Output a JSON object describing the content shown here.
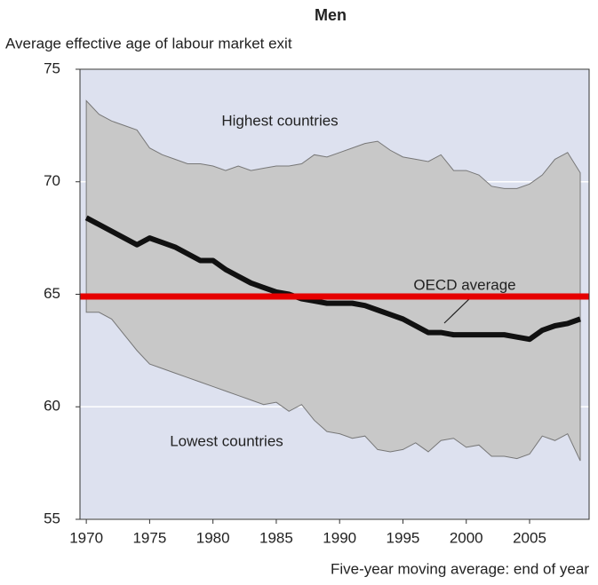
{
  "chart_data": {
    "type": "band",
    "title": "Men",
    "y_label": "Average effective age of labour market exit",
    "x_label": "Five-year moving average: end of year",
    "x": [
      1970,
      1971,
      1972,
      1973,
      1974,
      1975,
      1976,
      1977,
      1978,
      1979,
      1980,
      1981,
      1982,
      1983,
      1984,
      1985,
      1986,
      1987,
      1988,
      1989,
      1990,
      1991,
      1992,
      1993,
      1994,
      1995,
      1996,
      1997,
      1998,
      1999,
      2000,
      2001,
      2002,
      2003,
      2004,
      2005,
      2006,
      2007,
      2008,
      2009
    ],
    "series": [
      {
        "name": "Highest countries",
        "role": "upper",
        "color": "#c8c8c8",
        "values": [
          73.6,
          73.0,
          72.7,
          72.5,
          72.3,
          71.5,
          71.2,
          71.0,
          70.8,
          70.8,
          70.7,
          70.5,
          70.7,
          70.5,
          70.6,
          70.7,
          70.7,
          70.8,
          71.2,
          71.1,
          71.3,
          71.5,
          71.7,
          71.8,
          71.4,
          71.1,
          71.0,
          70.9,
          71.2,
          70.5,
          70.5,
          70.3,
          69.8,
          69.7,
          69.7,
          69.9,
          70.3,
          71.0,
          71.3,
          70.4
        ]
      },
      {
        "name": "Lowest countries",
        "role": "lower",
        "color": "#c8c8c8",
        "values": [
          64.2,
          64.2,
          63.9,
          63.2,
          62.5,
          61.9,
          61.7,
          61.5,
          61.3,
          61.1,
          60.9,
          60.7,
          60.5,
          60.3,
          60.1,
          60.2,
          59.8,
          60.1,
          59.4,
          58.9,
          58.8,
          58.6,
          58.7,
          58.1,
          58.0,
          58.1,
          58.4,
          58.0,
          58.5,
          58.6,
          58.2,
          58.3,
          57.8,
          57.8,
          57.7,
          57.9,
          58.7,
          58.5,
          58.8,
          57.6
        ]
      },
      {
        "name": "OECD average",
        "role": "line",
        "color": "#111111",
        "values": [
          68.4,
          68.1,
          67.8,
          67.5,
          67.2,
          67.5,
          67.3,
          67.1,
          66.8,
          66.5,
          66.5,
          66.1,
          65.8,
          65.5,
          65.3,
          65.1,
          65.0,
          64.8,
          64.7,
          64.6,
          64.6,
          64.6,
          64.5,
          64.3,
          64.1,
          63.9,
          63.6,
          63.3,
          63.3,
          63.2,
          63.2,
          63.2,
          63.2,
          63.2,
          63.1,
          63.0,
          63.4,
          63.6,
          63.7,
          63.9
        ]
      }
    ],
    "reference_line": {
      "value": 64.9,
      "color": "#e60000"
    },
    "background": "#dde1ef",
    "xlim": [
      1969.5,
      2009.7
    ],
    "ylim": [
      55,
      75
    ],
    "xticks": [
      1970,
      1975,
      1980,
      1985,
      1990,
      1995,
      2000,
      2005
    ],
    "yticks": [
      55,
      60,
      65,
      70,
      75
    ],
    "grid": true
  }
}
